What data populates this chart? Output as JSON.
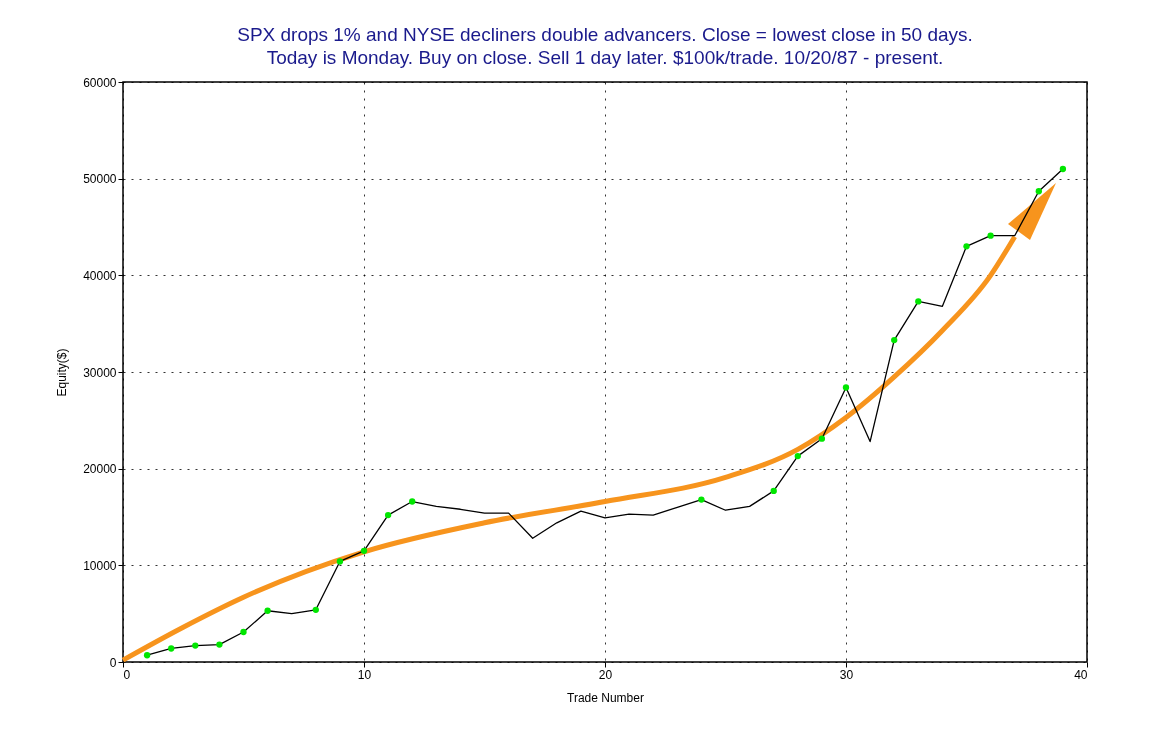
{
  "chart_data": {
    "type": "line",
    "title": "SPX drops 1% and NYSE decliners double advancers. Close = lowest close in 50 days.",
    "subtitle": "Today is Monday.  Buy on close. Sell 1 day later. $100k/trade. 10/20/87 - present.",
    "xlabel": "Trade Number",
    "ylabel": "Equity($)",
    "x": [
      1,
      2,
      3,
      4,
      5,
      6,
      7,
      8,
      9,
      10,
      11,
      12,
      13,
      14,
      15,
      16,
      17,
      18,
      19,
      20,
      21,
      22,
      23,
      24,
      25,
      26,
      27,
      28,
      29,
      30,
      31,
      32,
      33,
      34,
      35,
      36,
      37,
      38,
      39
    ],
    "series": [
      {
        "type": "line",
        "color": "#f7941d",
        "marker": "none",
        "x": [
          0,
          2.5,
          5,
          10,
          15,
          20,
          25,
          28,
          30,
          32,
          34,
          36,
          37
        ],
        "values": [
          200,
          3600,
          6700,
          11400,
          14400,
          16600,
          19100,
          22000,
          25300,
          29500,
          34300,
          40000,
          44000
        ]
      },
      {
        "color": "#000000",
        "marker": "none",
        "values": [
          700,
          1400,
          1700,
          1800,
          3100,
          5300,
          5000,
          5400,
          10400,
          11500,
          15200,
          16600,
          16100,
          15800,
          15400,
          15400,
          12800,
          14400,
          15600,
          14900,
          15300,
          15200,
          16000,
          16800,
          15700,
          16100,
          17700,
          21300,
          23100,
          28400,
          22800,
          33300,
          37300,
          36800,
          43000,
          44100,
          44100,
          48700,
          51000
        ]
      },
      {
        "type": "scatter",
        "color": "#00e600",
        "marker": "circle",
        "x": [
          1,
          2,
          3,
          4,
          5,
          6,
          8,
          9,
          10,
          11,
          12,
          24,
          27,
          28,
          29,
          30,
          32,
          33,
          35,
          36,
          38,
          39
        ],
        "values": [
          700,
          1400,
          1700,
          1800,
          3100,
          5300,
          5400,
          10400,
          11500,
          15200,
          16600,
          16800,
          17700,
          21300,
          23100,
          28400,
          33300,
          37300,
          43000,
          44100,
          48700,
          51000
        ]
      }
    ],
    "xlim": [
      0,
      40
    ],
    "xticks": [
      0,
      10,
      20,
      30,
      40
    ],
    "ylim": [
      0,
      60000
    ],
    "yticks": [
      0,
      10000,
      20000,
      30000,
      40000,
      50000,
      60000
    ],
    "grid": true
  }
}
